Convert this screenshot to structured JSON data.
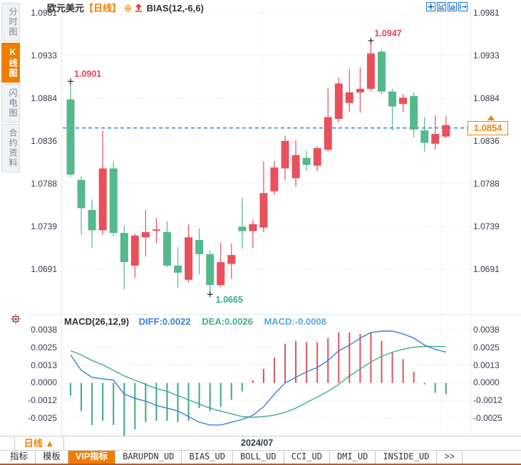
{
  "header": {
    "symbol": "欧元美元",
    "period_tag": "【日线】",
    "plus_icon": "⊕",
    "indicator_label": "BIAS(12,-6,6)",
    "toolbar_icons": [
      "pan-icon",
      "axis-zoom-up-icon",
      "axis-zoom-right-icon",
      "collapse-right-icon"
    ]
  },
  "sidebar": {
    "items": [
      {
        "label": "分时图",
        "active": false
      },
      {
        "label": "K线图",
        "active": true
      },
      {
        "label": "闪电图",
        "active": false
      },
      {
        "label": "合约资料",
        "active": false
      }
    ]
  },
  "colors": {
    "accent_orange": "#f07c00",
    "icon_blue": "#1b74c5"
  },
  "chart_data": {
    "type": "candlestick_with_macd",
    "title": "欧元美元 日线 (EUR/USD daily)",
    "price_ticks": [
      "1.0981",
      "1.0933",
      "1.0884",
      "1.0836",
      "1.0788",
      "1.0739",
      "1.0691"
    ],
    "price_axis_top": 1.0981,
    "price_axis_bottom": 1.0691,
    "current_price": 1.0854,
    "current_price_label": "1.0854",
    "candles": [
      [
        1.0883,
        1.0901,
        1.0795,
        1.0798
      ],
      [
        1.0792,
        1.0796,
        1.073,
        1.076
      ],
      [
        1.0758,
        1.077,
        1.0715,
        1.0735
      ],
      [
        1.0735,
        1.0848,
        1.073,
        1.0805
      ],
      [
        1.0805,
        1.0813,
        1.0728,
        1.0732
      ],
      [
        1.0732,
        1.074,
        1.0668,
        1.0699
      ],
      [
        1.0695,
        1.0731,
        1.0681,
        1.0729
      ],
      [
        1.0727,
        1.0758,
        1.0705,
        1.0733
      ],
      [
        1.0735,
        1.0749,
        1.072,
        1.0736
      ],
      [
        1.0733,
        1.0745,
        1.0693,
        1.0695
      ],
      [
        1.0695,
        1.0716,
        1.067,
        1.0687
      ],
      [
        1.0679,
        1.0742,
        1.0676,
        1.0727
      ],
      [
        1.0724,
        1.0737,
        1.0685,
        1.0708
      ],
      [
        1.0708,
        1.0712,
        1.0665,
        1.0673
      ],
      [
        1.0673,
        1.0721,
        1.0671,
        1.0699
      ],
      [
        1.0697,
        1.072,
        1.068,
        1.0707
      ],
      [
        1.0739,
        1.0772,
        1.0714,
        1.0734
      ],
      [
        1.0734,
        1.0747,
        1.0715,
        1.0742
      ],
      [
        1.0738,
        1.0813,
        1.0733,
        1.0777
      ],
      [
        1.0779,
        1.0813,
        1.0775,
        1.0806
      ],
      [
        1.0805,
        1.0842,
        1.0792,
        1.0836
      ],
      [
        1.0794,
        1.0837,
        1.0784,
        1.082
      ],
      [
        1.0817,
        1.0825,
        1.0802,
        1.0809
      ],
      [
        1.0808,
        1.083,
        1.0802,
        1.0828
      ],
      [
        1.0826,
        1.0896,
        1.0824,
        1.0863
      ],
      [
        1.0861,
        1.0908,
        1.0857,
        1.0901
      ],
      [
        1.0879,
        1.0917,
        1.0869,
        1.0891
      ],
      [
        1.0891,
        1.0919,
        1.0868,
        1.0895
      ],
      [
        1.0895,
        1.0947,
        1.0892,
        1.0935
      ],
      [
        1.0937,
        1.094,
        1.0889,
        1.0892
      ],
      [
        1.0892,
        1.0895,
        1.0848,
        1.0875
      ],
      [
        1.0878,
        1.0889,
        1.0869,
        1.0885
      ],
      [
        1.0887,
        1.0891,
        1.084,
        1.0849
      ],
      [
        1.0848,
        1.0863,
        1.0824,
        1.0834
      ],
      [
        1.0833,
        1.0865,
        1.0826,
        1.0844
      ],
      [
        1.0841,
        1.0864,
        1.0839,
        1.0854
      ]
    ],
    "annotations": [
      {
        "label": "1.0901",
        "candle": 0,
        "value": 1.0901,
        "side": "above",
        "color": "#e0485a"
      },
      {
        "label": "1.0947",
        "candle": 28,
        "value": 1.0947,
        "side": "above",
        "color": "#e0485a"
      },
      {
        "label": "1.0665",
        "candle": 13,
        "value": 1.0665,
        "side": "below",
        "color": "#2fae85"
      }
    ],
    "v_gridlines_x": [
      368,
      619
    ],
    "x_axis_label": "2024/07",
    "macd": {
      "title": "MACD(26,12,9)",
      "diff_label": "DIFF:0.0022",
      "dea_label": "DEA:0.0026",
      "macd_label": "MACD:-0.0008",
      "ticks": [
        "0.0038",
        "0.0025",
        "0.0013",
        "0.0000",
        "-0.0012",
        "-0.0025"
      ],
      "axis_top": 0.0038,
      "axis_bottom": -0.0025,
      "diff": [
        0.002,
        0.0009,
        0.0004,
        0.0003,
        0.0002,
        -0.0008,
        -0.0011,
        -0.0013,
        -0.0016,
        -0.0018,
        -0.002,
        -0.0024,
        -0.0028,
        -0.003,
        -0.003,
        -0.0028,
        -0.0026,
        -0.0023,
        -0.0017,
        -0.0008,
        0.0,
        0.0004,
        0.0008,
        0.0011,
        0.0016,
        0.0023,
        0.0027,
        0.0032,
        0.0036,
        0.0037,
        0.0037,
        0.0035,
        0.0032,
        0.0027,
        0.0024,
        0.0022
      ],
      "dea": [
        0.0023,
        0.002,
        0.0016,
        0.0013,
        0.0009,
        0.0005,
        0.0002,
        -0.0001,
        -0.0004,
        -0.0006,
        -0.0009,
        -0.0012,
        -0.0015,
        -0.0018,
        -0.002,
        -0.0022,
        -0.0024,
        -0.00245,
        -0.0024,
        -0.0023,
        -0.0021,
        -0.0018,
        -0.0014,
        -0.001,
        -0.0006,
        -0.0001,
        0.0005,
        0.001,
        0.0015,
        0.0019,
        0.0022,
        0.0024,
        0.00255,
        0.0026,
        0.0026,
        0.0026
      ],
      "hist": [
        -0.0009,
        -0.002,
        -0.003,
        -0.0027,
        -0.003,
        -0.0038,
        -0.0033,
        -0.0028,
        -0.0027,
        -0.0027,
        -0.0028,
        -0.0027,
        -0.0018,
        -0.002,
        -0.0017,
        -0.0012,
        -0.0006,
        0.0002,
        0.001,
        0.0018,
        0.0028,
        0.003,
        0.0029,
        0.0029,
        0.0032,
        0.0036,
        0.0036,
        0.0035,
        0.0036,
        0.003,
        0.0022,
        0.0017,
        0.0008,
        -0.0001,
        -0.0007,
        -0.0008
      ]
    },
    "style": {
      "up": "#e8515c",
      "down": "#54b98c",
      "diff": "#3b7fd4",
      "dea": "#3eb08a",
      "hist_up": "#d9565e",
      "hist_down": "#3fa87c",
      "dashed_line": "#1e7ad2"
    }
  },
  "bottom": {
    "period_button": "日线 ▲",
    "tabs": [
      {
        "label": "指标",
        "active": false,
        "mono": false
      },
      {
        "label": "模板",
        "active": false,
        "mono": false
      },
      {
        "label": "VIP指标",
        "active": true,
        "mono": false
      },
      {
        "label": "BARUPDN_UD",
        "active": false,
        "mono": true
      },
      {
        "label": "BIAS_UD",
        "active": false,
        "mono": true
      },
      {
        "label": "BOLL_UD",
        "active": false,
        "mono": true
      },
      {
        "label": "CCI_UD",
        "active": false,
        "mono": true
      },
      {
        "label": "DMI_UD",
        "active": false,
        "mono": true
      },
      {
        "label": "INSIDE_UD",
        "active": false,
        "mono": true
      },
      {
        "label": ">>",
        "active": false,
        "mono": false
      }
    ]
  }
}
